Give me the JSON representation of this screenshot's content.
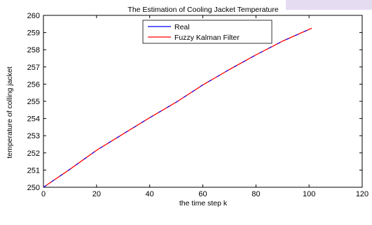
{
  "chart_data": {
    "type": "line",
    "title": "The Estimation of Cooling Jacket Temperature",
    "xlabel": "the time step k",
    "ylabel": "temperature of colling jacket",
    "xlim": [
      0,
      120
    ],
    "ylim": [
      250,
      260
    ],
    "xticks": [
      0,
      20,
      40,
      60,
      80,
      100,
      120
    ],
    "yticks": [
      250,
      251,
      252,
      253,
      254,
      255,
      256,
      257,
      258,
      259,
      260
    ],
    "grid": false,
    "legend_position": "top-center",
    "series": [
      {
        "name": "Real",
        "color": "#0000ff",
        "x": [
          0,
          10,
          20,
          30,
          40,
          50,
          60,
          70,
          80,
          90,
          101
        ],
        "y": [
          250.0,
          251.05,
          252.15,
          253.1,
          254.05,
          254.95,
          255.95,
          256.85,
          257.7,
          258.5,
          259.25
        ]
      },
      {
        "name": "Fuzzy Kalman Filter",
        "color": "#ff0000",
        "x": [
          0,
          10,
          20,
          30,
          40,
          50,
          60,
          70,
          80,
          90,
          101
        ],
        "y": [
          250.0,
          251.05,
          252.15,
          253.1,
          254.05,
          254.95,
          255.95,
          256.85,
          257.7,
          258.5,
          259.25
        ]
      }
    ]
  }
}
